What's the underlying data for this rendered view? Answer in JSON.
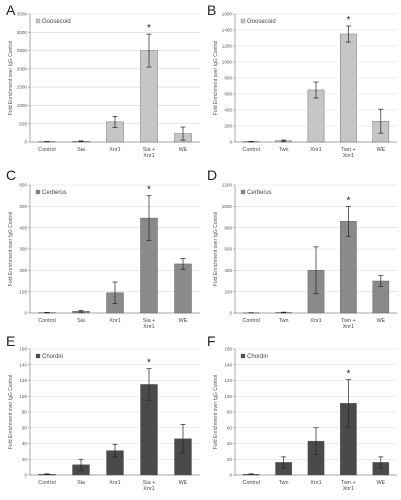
{
  "chart_data": [
    {
      "panel": "A",
      "type": "bar",
      "legend": "Goosecoid",
      "legend_position": "top-left",
      "ylabel": "Fold Enrichment over IgG Control",
      "ylim": [
        0,
        3500
      ],
      "yticks": [
        "0",
        "500",
        "1000",
        "1500",
        "2000",
        "2500",
        "3000",
        "3500"
      ],
      "categories": [
        "Control",
        "Sia",
        "Xnr1",
        "Sia +\nXnr1",
        "WE"
      ],
      "values": [
        10,
        20,
        550,
        2500,
        230
      ],
      "errors": [
        5,
        10,
        150,
        450,
        180
      ],
      "significance": [
        "",
        "",
        "",
        "*",
        ""
      ],
      "color": "#c6c6c6",
      "grid": true
    },
    {
      "panel": "B",
      "type": "bar",
      "legend": "Goosecoid",
      "legend_position": "top-left",
      "ylabel": "Fold Enrichment over IgG Control",
      "ylim": [
        0,
        1600
      ],
      "yticks": [
        "0",
        "200",
        "400",
        "600",
        "800",
        "1000",
        "1200",
        "1400",
        "1600"
      ],
      "categories": [
        "Control",
        "Twn",
        "Xnr1",
        "Twn +\nXnr1",
        "WE"
      ],
      "values": [
        5,
        15,
        650,
        1350,
        260
      ],
      "errors": [
        3,
        10,
        100,
        100,
        150
      ],
      "significance": [
        "",
        "",
        "",
        "*",
        ""
      ],
      "color": "#c6c6c6",
      "grid": true
    },
    {
      "panel": "C",
      "type": "bar",
      "legend": "Cerberus",
      "legend_position": "top-left",
      "ylabel": "Fold Enrichment over IgG Control",
      "ylim": [
        0,
        600
      ],
      "yticks": [
        "0",
        "100",
        "200",
        "300",
        "400",
        "500",
        "600"
      ],
      "categories": [
        "Control",
        "Sia",
        "Xnr1",
        "Sia +\nXnr1",
        "WE"
      ],
      "values": [
        2,
        8,
        95,
        445,
        230
      ],
      "errors": [
        1,
        4,
        50,
        105,
        25
      ],
      "significance": [
        "",
        "",
        "",
        "*",
        ""
      ],
      "color": "#8a8a8a",
      "grid": true
    },
    {
      "panel": "D",
      "type": "bar",
      "legend": "Cerberus",
      "legend_position": "top-left",
      "ylabel": "Fold Enrichment over IgG Control",
      "ylim": [
        0,
        1200
      ],
      "yticks": [
        "0",
        "200",
        "400",
        "600",
        "800",
        "1000",
        "1200"
      ],
      "categories": [
        "Control",
        "Twn",
        "Xnr1",
        "Twn +\nXnr1",
        "WE"
      ],
      "values": [
        2,
        5,
        400,
        860,
        300
      ],
      "errors": [
        1,
        3,
        220,
        140,
        50
      ],
      "significance": [
        "",
        "",
        "",
        "*",
        ""
      ],
      "color": "#8a8a8a",
      "grid": true
    },
    {
      "panel": "E",
      "type": "bar",
      "legend": "Chordin",
      "legend_position": "top-left",
      "ylabel": "Fold Enrichment over IgG Control",
      "ylim": [
        0,
        160
      ],
      "yticks": [
        "0",
        "20",
        "40",
        "60",
        "80",
        "100",
        "120",
        "140",
        "160"
      ],
      "categories": [
        "Control",
        "Sia",
        "Xnr1",
        "Sia +\nXnr1",
        "WE"
      ],
      "values": [
        1,
        13,
        31,
        115,
        46
      ],
      "errors": [
        0.5,
        7,
        8,
        20,
        18
      ],
      "significance": [
        "",
        "",
        "",
        "*",
        ""
      ],
      "color": "#4a4a4a",
      "grid": true
    },
    {
      "panel": "F",
      "type": "bar",
      "legend": "Chordin",
      "legend_position": "top-left",
      "ylabel": "Fold Enrichment over IgG Control",
      "ylim": [
        0,
        160
      ],
      "yticks": [
        "0",
        "20",
        "40",
        "60",
        "80",
        "100",
        "120",
        "140",
        "160"
      ],
      "categories": [
        "Control",
        "Twn",
        "Xnr1",
        "Twn +\nXnr1",
        "WE"
      ],
      "values": [
        1,
        16,
        43,
        91,
        16
      ],
      "errors": [
        0.5,
        7,
        17,
        30,
        7
      ],
      "significance": [
        "",
        "",
        "",
        "*",
        ""
      ],
      "color": "#4a4a4a",
      "grid": true
    }
  ]
}
